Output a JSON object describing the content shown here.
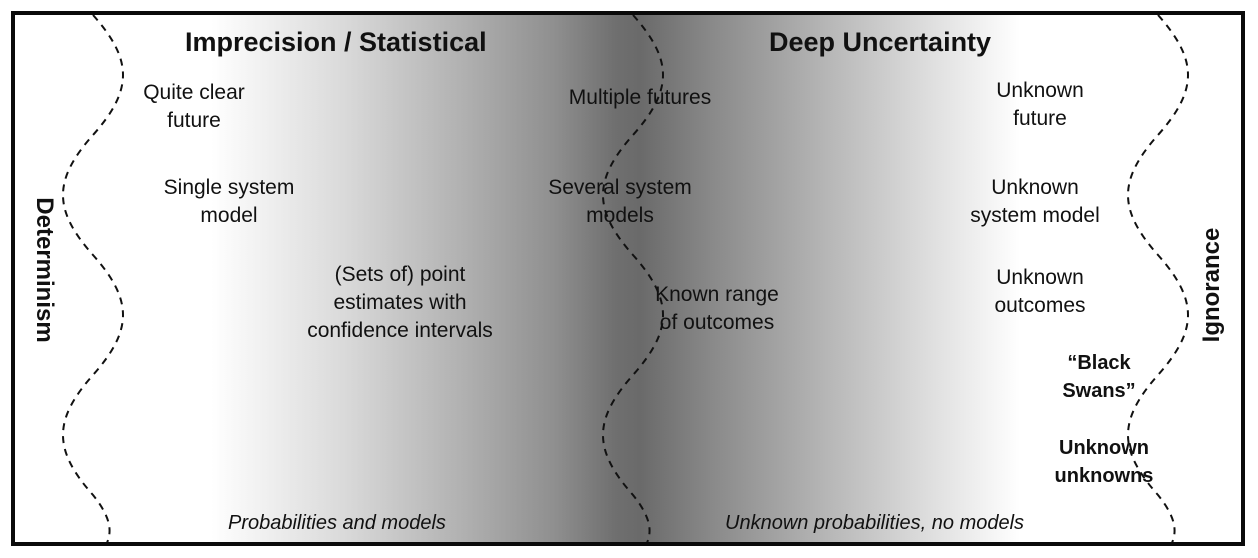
{
  "headers": {
    "left": "Imprecision / Statistical",
    "right": "Deep Uncertainty"
  },
  "side_labels": {
    "left": "Determinism",
    "right": "Ignorance"
  },
  "column1": {
    "future": "Quite clear\nfuture",
    "model": "Single system\nmodel",
    "outcomes": "(Sets of) point\nestimates with\nconfidence intervals"
  },
  "column2": {
    "future": "Multiple futures",
    "model": "Several system\nmodels",
    "outcomes": "Known range\nof outcomes"
  },
  "column3": {
    "future": "Unknown\nfuture",
    "model": "Unknown\nsystem model",
    "outcomes": "Unknown\noutcomes",
    "black_swans": "“Black\nSwans”",
    "unknown_unknowns": "Unknown\nunknowns"
  },
  "footers": {
    "left": "Probabilities and models",
    "right": "Unknown probabilities, no models"
  },
  "colors": {
    "border": "#0a0a0a",
    "gradient_dark": "#6a6a6a",
    "text": "#111111"
  }
}
